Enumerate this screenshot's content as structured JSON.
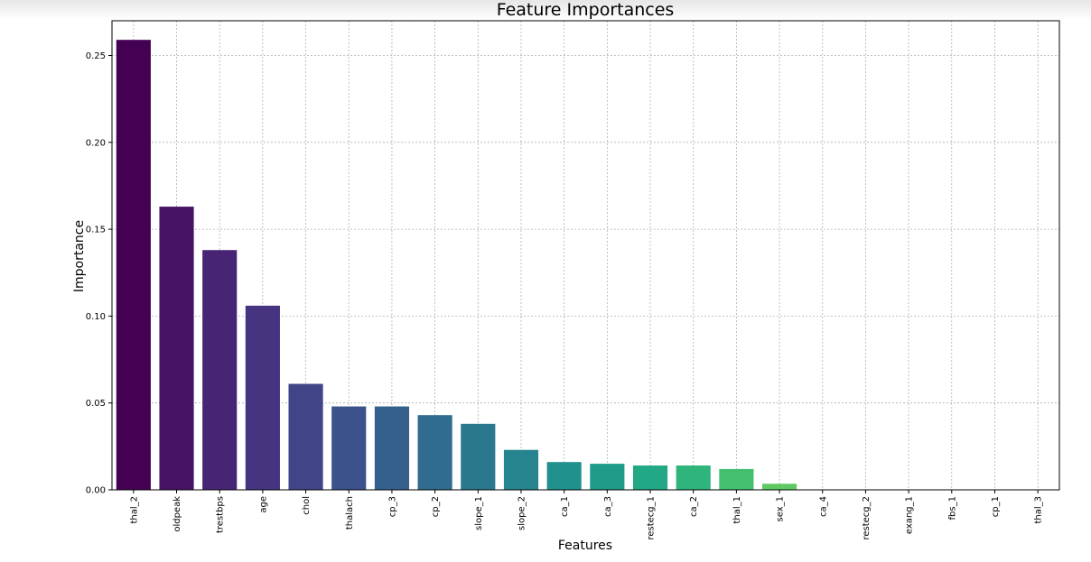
{
  "chart_data": {
    "type": "bar",
    "title": "Feature Importances",
    "xlabel": "Features",
    "ylabel": "Importance",
    "ylim": [
      0,
      0.27
    ],
    "yticks": [
      0.0,
      0.05,
      0.1,
      0.15,
      0.2,
      0.25
    ],
    "ytick_labels": [
      "0.00",
      "0.05",
      "0.10",
      "0.15",
      "0.20",
      "0.25"
    ],
    "grid": true,
    "categories": [
      "thal_2",
      "oldpeak",
      "trestbps",
      "age",
      "chol",
      "thalach",
      "cp_3",
      "cp_2",
      "slope_1",
      "slope_2",
      "ca_1",
      "ca_3",
      "restecg_1",
      "ca_2",
      "thal_1",
      "sex_1",
      "ca_4",
      "restecg_2",
      "exang_1",
      "fbs_1",
      "cp_1",
      "thal_3"
    ],
    "values": [
      0.259,
      0.163,
      0.138,
      0.106,
      0.061,
      0.048,
      0.048,
      0.043,
      0.038,
      0.023,
      0.016,
      0.015,
      0.014,
      0.014,
      0.012,
      0.0035,
      0.0,
      0.0,
      0.0,
      0.0,
      0.0,
      0.0
    ],
    "colors": [
      "#440154",
      "#471365",
      "#482475",
      "#463480",
      "#414487",
      "#3b528b",
      "#355f8d",
      "#2f6c8e",
      "#2a788e",
      "#25848e",
      "#21918c",
      "#1e9c89",
      "#22a884",
      "#2fb47c",
      "#44bf70",
      "#5ec962",
      "#7ad151",
      "#9bd93c",
      "#bddf26",
      "#dfe318",
      "#f0e51d",
      "#fde725"
    ]
  }
}
